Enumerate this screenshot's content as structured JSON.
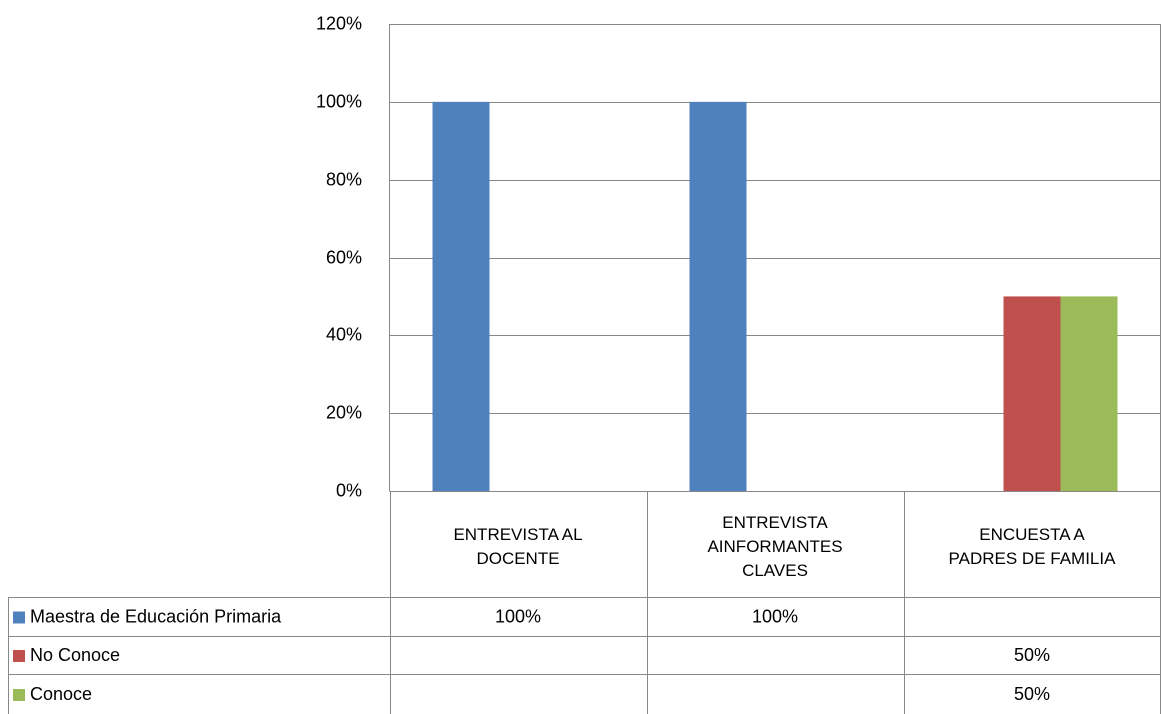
{
  "chart_data": {
    "type": "bar",
    "categories": [
      "ENTREVISTA AL DOCENTE",
      "ENTREVISTA AINFORMANTES CLAVES",
      "ENCUESTA A PADRES DE FAMILIA"
    ],
    "series": [
      {
        "name": "Maestra de Educación Primaria",
        "color": "#4f81bd",
        "values": [
          100,
          100,
          null
        ],
        "value_labels": [
          "100%",
          "100%",
          null
        ]
      },
      {
        "name": "No Conoce",
        "color": "#c0504d",
        "values": [
          null,
          null,
          50
        ],
        "value_labels": [
          null,
          null,
          "50%"
        ]
      },
      {
        "name": "Conoce",
        "color": "#9bbb59",
        "values": [
          null,
          null,
          50
        ],
        "value_labels": [
          null,
          null,
          "50%"
        ]
      }
    ],
    "ylim": [
      0,
      120
    ],
    "yticks": [
      {
        "value": 0,
        "label": "0%"
      },
      {
        "value": 20,
        "label": "20%"
      },
      {
        "value": 40,
        "label": "40%"
      },
      {
        "value": 60,
        "label": "60%"
      },
      {
        "value": 80,
        "label": "80%"
      },
      {
        "value": 100,
        "label": "100%"
      },
      {
        "value": 120,
        "label": "120%"
      }
    ],
    "grid": true,
    "legend": "data-table"
  }
}
